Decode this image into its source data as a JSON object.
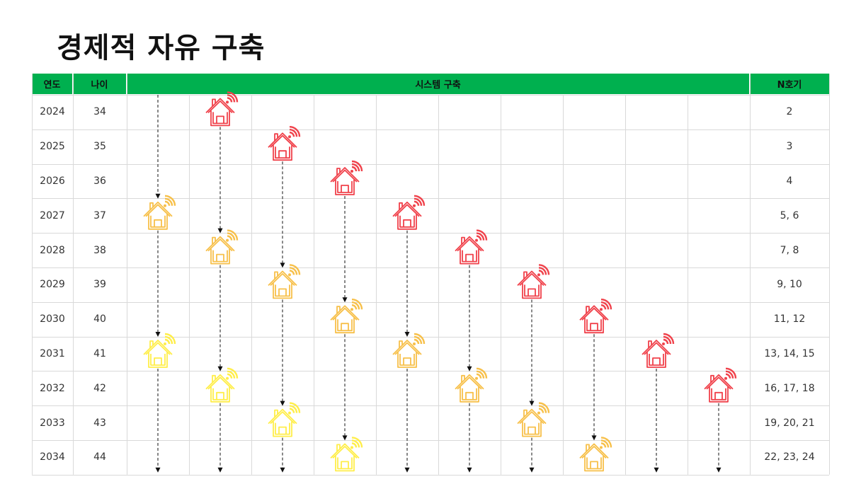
{
  "title": "경제적 자유 구축",
  "header": {
    "year": "연도",
    "age": "나이",
    "system": "시스템 구축",
    "house_no": "N호기"
  },
  "rows": [
    {
      "year": "2024",
      "age": "34",
      "houses": "2"
    },
    {
      "year": "2025",
      "age": "35",
      "houses": "3"
    },
    {
      "year": "2026",
      "age": "36",
      "houses": "4"
    },
    {
      "year": "2027",
      "age": "37",
      "houses": "5, 6"
    },
    {
      "year": "2028",
      "age": "38",
      "houses": "7, 8"
    },
    {
      "year": "2029",
      "age": "39",
      "houses": "9, 10"
    },
    {
      "year": "2030",
      "age": "40",
      "houses": "11, 12"
    },
    {
      "year": "2031",
      "age": "41",
      "houses": "13, 14, 15"
    },
    {
      "year": "2032",
      "age": "42",
      "houses": "16, 17, 18"
    },
    {
      "year": "2033",
      "age": "43",
      "houses": "19, 20, 21"
    },
    {
      "year": "2034",
      "age": "44",
      "houses": "22, 23, 24"
    }
  ],
  "colors": {
    "header": "#00b04f",
    "stage1": "#f0424b",
    "stage2": "#f7c04a",
    "stage3": "#ffee4a",
    "grid": "#d9d9d9",
    "arrow": "#111111"
  },
  "system_lanes": [
    {
      "start_row": 3,
      "icons": [
        {
          "row": 3,
          "stage": "stage2"
        },
        {
          "row": 7,
          "stage": "stage3"
        }
      ]
    },
    {
      "start_row": 0,
      "icons": [
        {
          "row": 0,
          "stage": "stage1"
        },
        {
          "row": 4,
          "stage": "stage2"
        },
        {
          "row": 8,
          "stage": "stage3"
        }
      ]
    },
    {
      "start_row": 1,
      "icons": [
        {
          "row": 1,
          "stage": "stage1"
        },
        {
          "row": 5,
          "stage": "stage2"
        },
        {
          "row": 9,
          "stage": "stage3"
        }
      ]
    },
    {
      "start_row": 2,
      "icons": [
        {
          "row": 2,
          "stage": "stage1"
        },
        {
          "row": 6,
          "stage": "stage2"
        },
        {
          "row": 10,
          "stage": "stage3"
        }
      ]
    },
    {
      "start_row": 3,
      "icons": [
        {
          "row": 3,
          "stage": "stage1"
        },
        {
          "row": 7,
          "stage": "stage2"
        }
      ]
    },
    {
      "start_row": 4,
      "icons": [
        {
          "row": 4,
          "stage": "stage1"
        },
        {
          "row": 8,
          "stage": "stage2"
        }
      ]
    },
    {
      "start_row": 5,
      "icons": [
        {
          "row": 5,
          "stage": "stage1"
        },
        {
          "row": 9,
          "stage": "stage2"
        }
      ]
    },
    {
      "start_row": 6,
      "icons": [
        {
          "row": 6,
          "stage": "stage1"
        },
        {
          "row": 10,
          "stage": "stage2"
        }
      ]
    },
    {
      "start_row": 7,
      "icons": [
        {
          "row": 7,
          "stage": "stage1"
        }
      ]
    },
    {
      "start_row": 8,
      "icons": [
        {
          "row": 8,
          "stage": "stage1"
        }
      ]
    }
  ]
}
